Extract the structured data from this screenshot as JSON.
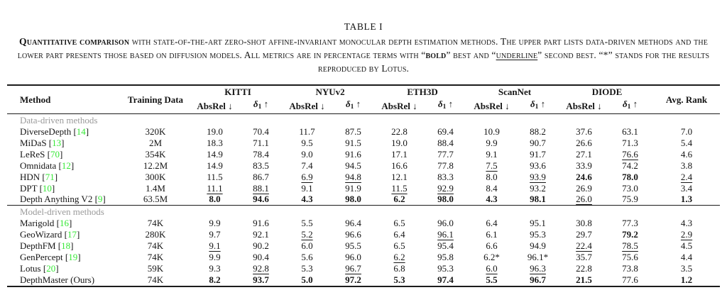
{
  "caption": {
    "label": "TABLE I",
    "segments": [
      {
        "text": "Quantitative comparison",
        "bold": true
      },
      {
        "text": " with state-of-the-art zero-shot affine-invariant monocular depth estimation methods. The upper part lists data-driven methods and the lower part presents those based on diffusion models. All metrics are in percentage terms with “"
      },
      {
        "text": "bold",
        "bold": true
      },
      {
        "text": "” best and “"
      },
      {
        "text": "underline",
        "underline": true
      },
      {
        "text": "” second best. “*” stands for the results reproduced by Lotus."
      }
    ]
  },
  "table": {
    "method_header": "Method",
    "training_header": "Training Data",
    "avg_rank_header": "Avg. Rank",
    "datasets": [
      "KITTI",
      "NYUv2",
      "ETH3D",
      "ScanNet",
      "DIODE"
    ],
    "metric_headers": [
      {
        "sym": "AbsRel",
        "sub": "",
        "arrow": "↓",
        "italic": false
      },
      {
        "sym": "δ",
        "sub": "1",
        "arrow": "↑",
        "italic": true
      }
    ],
    "colors": {
      "citation_green": "#35e835",
      "section_gray": "#9a9a9a",
      "rule": "#1c1c1c"
    },
    "sections": [
      {
        "label": "Data-driven methods",
        "rows": [
          {
            "name": "DiverseDepth",
            "ref": "14",
            "training": "320K",
            "values": [
              "19.0",
              "70.4",
              "11.7",
              "87.5",
              "22.8",
              "69.4",
              "10.9",
              "88.2",
              "37.6",
              "63.1",
              "7.0"
            ],
            "marks": [
              "",
              "",
              "",
              "",
              "",
              "",
              "",
              "",
              "",
              "",
              ""
            ]
          },
          {
            "name": "MiDaS",
            "ref": "13",
            "training": "2M",
            "values": [
              "18.3",
              "71.1",
              "9.5",
              "91.5",
              "19.0",
              "88.4",
              "9.9",
              "90.7",
              "26.6",
              "71.3",
              "5.4"
            ],
            "marks": [
              "",
              "",
              "",
              "",
              "",
              "",
              "",
              "",
              "",
              "",
              ""
            ]
          },
          {
            "name": "LeReS",
            "ref": "70",
            "training": "354K",
            "values": [
              "14.9",
              "78.4",
              "9.0",
              "91.6",
              "17.1",
              "77.7",
              "9.1",
              "91.7",
              "27.1",
              "76.6",
              "4.6"
            ],
            "marks": [
              "",
              "",
              "",
              "",
              "",
              "",
              "",
              "",
              "",
              "u",
              ""
            ]
          },
          {
            "name": "Omnidata",
            "ref": "12",
            "training": "12.2M",
            "values": [
              "14.9",
              "83.5",
              "7.4",
              "94.5",
              "16.6",
              "77.8",
              "7.5",
              "93.6",
              "33.9",
              "74.2",
              "3.8"
            ],
            "marks": [
              "",
              "",
              "",
              "",
              "",
              "",
              "u",
              "",
              "",
              "",
              ""
            ]
          },
          {
            "name": "HDN",
            "ref": "71",
            "training": "300K",
            "values": [
              "11.5",
              "86.7",
              "6.9",
              "94.8",
              "12.1",
              "83.3",
              "8.0",
              "93.9",
              "24.6",
              "78.0",
              "2.4"
            ],
            "marks": [
              "",
              "",
              "u",
              "u",
              "",
              "",
              "",
              "u",
              "b",
              "b",
              "u"
            ]
          },
          {
            "name": "DPT",
            "ref": "10",
            "training": "1.4M",
            "values": [
              "11.1",
              "88.1",
              "9.1",
              "91.9",
              "11.5",
              "92.9",
              "8.4",
              "93.2",
              "26.9",
              "73.0",
              "3.4"
            ],
            "marks": [
              "u",
              "u",
              "",
              "",
              "u",
              "u",
              "",
              "",
              "",
              "",
              ""
            ]
          },
          {
            "name": "Depth Anything V2",
            "ref": "9",
            "training": "63.5M",
            "values": [
              "8.0",
              "94.6",
              "4.3",
              "98.0",
              "6.2",
              "98.0",
              "4.3",
              "98.1",
              "26.0",
              "75.9",
              "1.3"
            ],
            "marks": [
              "b",
              "b",
              "b",
              "b",
              "b",
              "b",
              "b",
              "b",
              "u",
              "",
              "b"
            ]
          }
        ]
      },
      {
        "label": "Model-driven methods",
        "rows": [
          {
            "name": "Marigold",
            "ref": "16",
            "training": "74K",
            "values": [
              "9.9",
              "91.6",
              "5.5",
              "96.4",
              "6.5",
              "96.0",
              "6.4",
              "95.1",
              "30.8",
              "77.3",
              "4.3"
            ],
            "marks": [
              "",
              "",
              "",
              "",
              "",
              "",
              "",
              "",
              "",
              "",
              ""
            ]
          },
          {
            "name": "GeoWizard",
            "ref": "17",
            "training": "280K",
            "values": [
              "9.7",
              "92.1",
              "5.2",
              "96.6",
              "6.4",
              "96.1",
              "6.1",
              "95.3",
              "29.7",
              "79.2",
              "2.9"
            ],
            "marks": [
              "",
              "",
              "u",
              "",
              "",
              "u",
              "",
              "",
              "",
              "b",
              "u"
            ]
          },
          {
            "name": "DepthFM",
            "ref": "18",
            "training": "74K",
            "values": [
              "9.1",
              "90.2",
              "6.0",
              "95.5",
              "6.5",
              "95.4",
              "6.6",
              "94.9",
              "22.4",
              "78.5",
              "4.5"
            ],
            "marks": [
              "u",
              "",
              "",
              "",
              "",
              "",
              "",
              "",
              "u",
              "u",
              ""
            ]
          },
          {
            "name": "GenPercept",
            "ref": "19",
            "training": "74K",
            "values": [
              "9.9",
              "90.4",
              "5.6",
              "96.0",
              "6.2",
              "95.8",
              "6.2*",
              "96.1*",
              "35.7",
              "75.6",
              "4.4"
            ],
            "marks": [
              "",
              "",
              "",
              "",
              "u",
              "",
              "",
              "",
              "",
              "",
              ""
            ]
          },
          {
            "name": "Lotus",
            "ref": "20",
            "training": "59K",
            "values": [
              "9.3",
              "92.8",
              "5.3",
              "96.7",
              "6.8",
              "95.3",
              "6.0",
              "96.3",
              "22.8",
              "73.8",
              "3.5"
            ],
            "marks": [
              "",
              "u",
              "",
              "u",
              "",
              "",
              "u",
              "u",
              "",
              "",
              ""
            ]
          },
          {
            "name": "DepthMaster (Ours)",
            "ref": null,
            "training": "74K",
            "values": [
              "8.2",
              "93.7",
              "5.0",
              "97.2",
              "5.3",
              "97.4",
              "5.5",
              "96.7",
              "21.5",
              "77.6",
              "1.2"
            ],
            "marks": [
              "b",
              "b",
              "b",
              "b",
              "b",
              "b",
              "b",
              "b",
              "b",
              "",
              "b"
            ]
          }
        ]
      }
    ]
  }
}
